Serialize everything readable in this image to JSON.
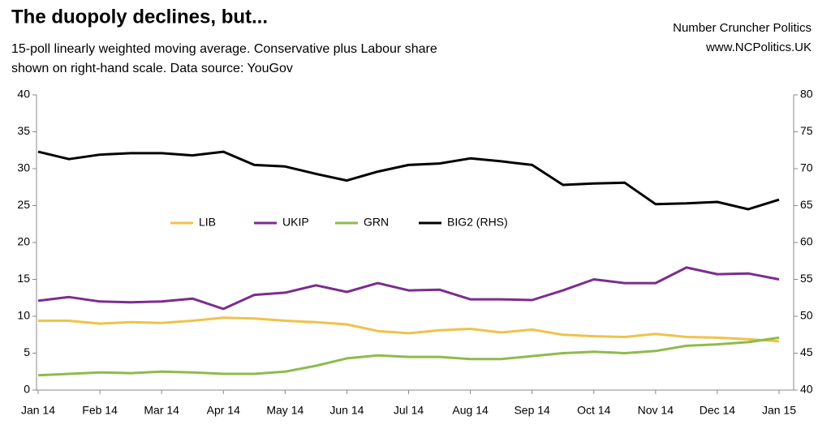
{
  "chart_data": {
    "type": "line",
    "title": "The duopoly declines, but...",
    "subtitle": [
      "15-poll linearly weighted moving average. Conservative plus Labour share",
      "shown on right-hand scale. Data source: YouGov"
    ],
    "source": [
      "Number Cruncher Politics",
      "www.NCPolitics.UK"
    ],
    "categories": [
      "Jan 14",
      null,
      "Feb 14",
      null,
      "Mar 14",
      null,
      "Apr 14",
      null,
      "May 14",
      null,
      "Jun 14",
      null,
      "Jul 14",
      null,
      "Aug 14",
      null,
      "Sep 14",
      null,
      "Oct 14",
      null,
      "Nov 14",
      null,
      "Dec 14",
      null,
      "Jan 15"
    ],
    "series": [
      {
        "name": "LIB",
        "color": "#f0c24a",
        "values": [
          9.4,
          9.4,
          9.0,
          9.2,
          9.1,
          9.4,
          9.8,
          9.7,
          9.4,
          9.2,
          8.9,
          8.0,
          7.7,
          8.1,
          8.3,
          7.8,
          8.2,
          7.5,
          7.3,
          7.2,
          7.6,
          7.2,
          7.1,
          6.9,
          6.6
        ]
      },
      {
        "name": "UKIP",
        "color": "#7b2d8e",
        "values": [
          12.1,
          12.6,
          12.0,
          11.9,
          12.0,
          12.4,
          11.0,
          12.9,
          13.2,
          14.2,
          13.3,
          14.5,
          13.5,
          13.6,
          12.3,
          12.3,
          12.2,
          13.5,
          15.0,
          14.5,
          14.5,
          16.6,
          15.7,
          15.8,
          15.0
        ]
      },
      {
        "name": "GRN",
        "color": "#8dbb4d",
        "values": [
          2.0,
          2.2,
          2.4,
          2.3,
          2.5,
          2.4,
          2.2,
          2.2,
          2.5,
          3.3,
          4.3,
          4.7,
          4.5,
          4.5,
          4.2,
          4.2,
          4.6,
          5.0,
          5.2,
          5.0,
          5.3,
          6.0,
          6.2,
          6.5,
          7.1
        ]
      },
      {
        "name": "BIG2 (RHS)",
        "color": "#000000",
        "axis": "y2",
        "values": [
          72.3,
          71.3,
          71.9,
          72.1,
          72.1,
          71.8,
          72.3,
          70.5,
          70.3,
          69.3,
          68.4,
          69.6,
          70.5,
          70.7,
          71.4,
          71.0,
          70.5,
          67.8,
          68.0,
          68.1,
          65.2,
          65.3,
          65.5,
          64.5,
          65.8
        ]
      }
    ],
    "ylim": [
      0,
      40
    ],
    "yticks": [
      0,
      5,
      10,
      15,
      20,
      25,
      30,
      35,
      40
    ],
    "y2lim": [
      40,
      80
    ],
    "y2ticks": [
      40,
      45,
      50,
      55,
      60,
      65,
      70,
      75,
      80
    ],
    "grid": false
  }
}
